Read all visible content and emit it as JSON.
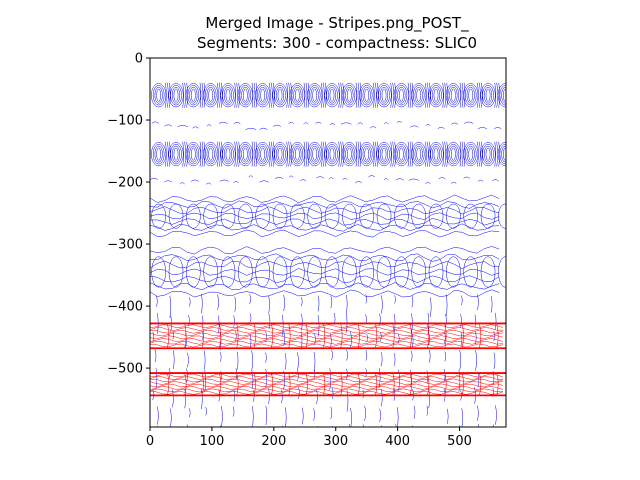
{
  "chart_data": {
    "type": "contour",
    "title_lines": [
      "Merged Image - Stripes.png_POST_",
      "Segments: 300 - compactness: SLIC0"
    ],
    "xlim": [
      0,
      575
    ],
    "ylim": [
      -595,
      0
    ],
    "x_ticks": [
      0,
      100,
      200,
      300,
      400,
      500
    ],
    "y_ticks": [
      0,
      -100,
      -200,
      -300,
      -400,
      -500
    ],
    "x_tick_labels": [
      "0",
      "100",
      "200",
      "300",
      "400",
      "500"
    ],
    "y_tick_labels": [
      "0",
      "−100",
      "−200",
      "−300",
      "−400",
      "−500"
    ],
    "grid": false,
    "colors": {
      "blue_contours": "#0000ff",
      "red_contours": "#ff0000"
    },
    "blue_bands": [
      {
        "y_center": -60,
        "half_height": 20,
        "style": "oval-cells"
      },
      {
        "y_center": -155,
        "half_height": 20,
        "style": "oval-cells"
      },
      {
        "y_center": -110,
        "half_height": 6,
        "style": "dashes"
      },
      {
        "y_center": -198,
        "half_height": 6,
        "style": "dashes"
      },
      {
        "y_center": -255,
        "half_height": 28,
        "style": "wavy-lines"
      },
      {
        "y_center": -345,
        "half_height": 35,
        "style": "wavy-lines"
      }
    ],
    "red_bands": [
      {
        "y_center": -448,
        "half_height": 20
      },
      {
        "y_center": -526,
        "half_height": 18
      }
    ],
    "vertical_segments_y_range": [
      -380,
      -595
    ]
  }
}
